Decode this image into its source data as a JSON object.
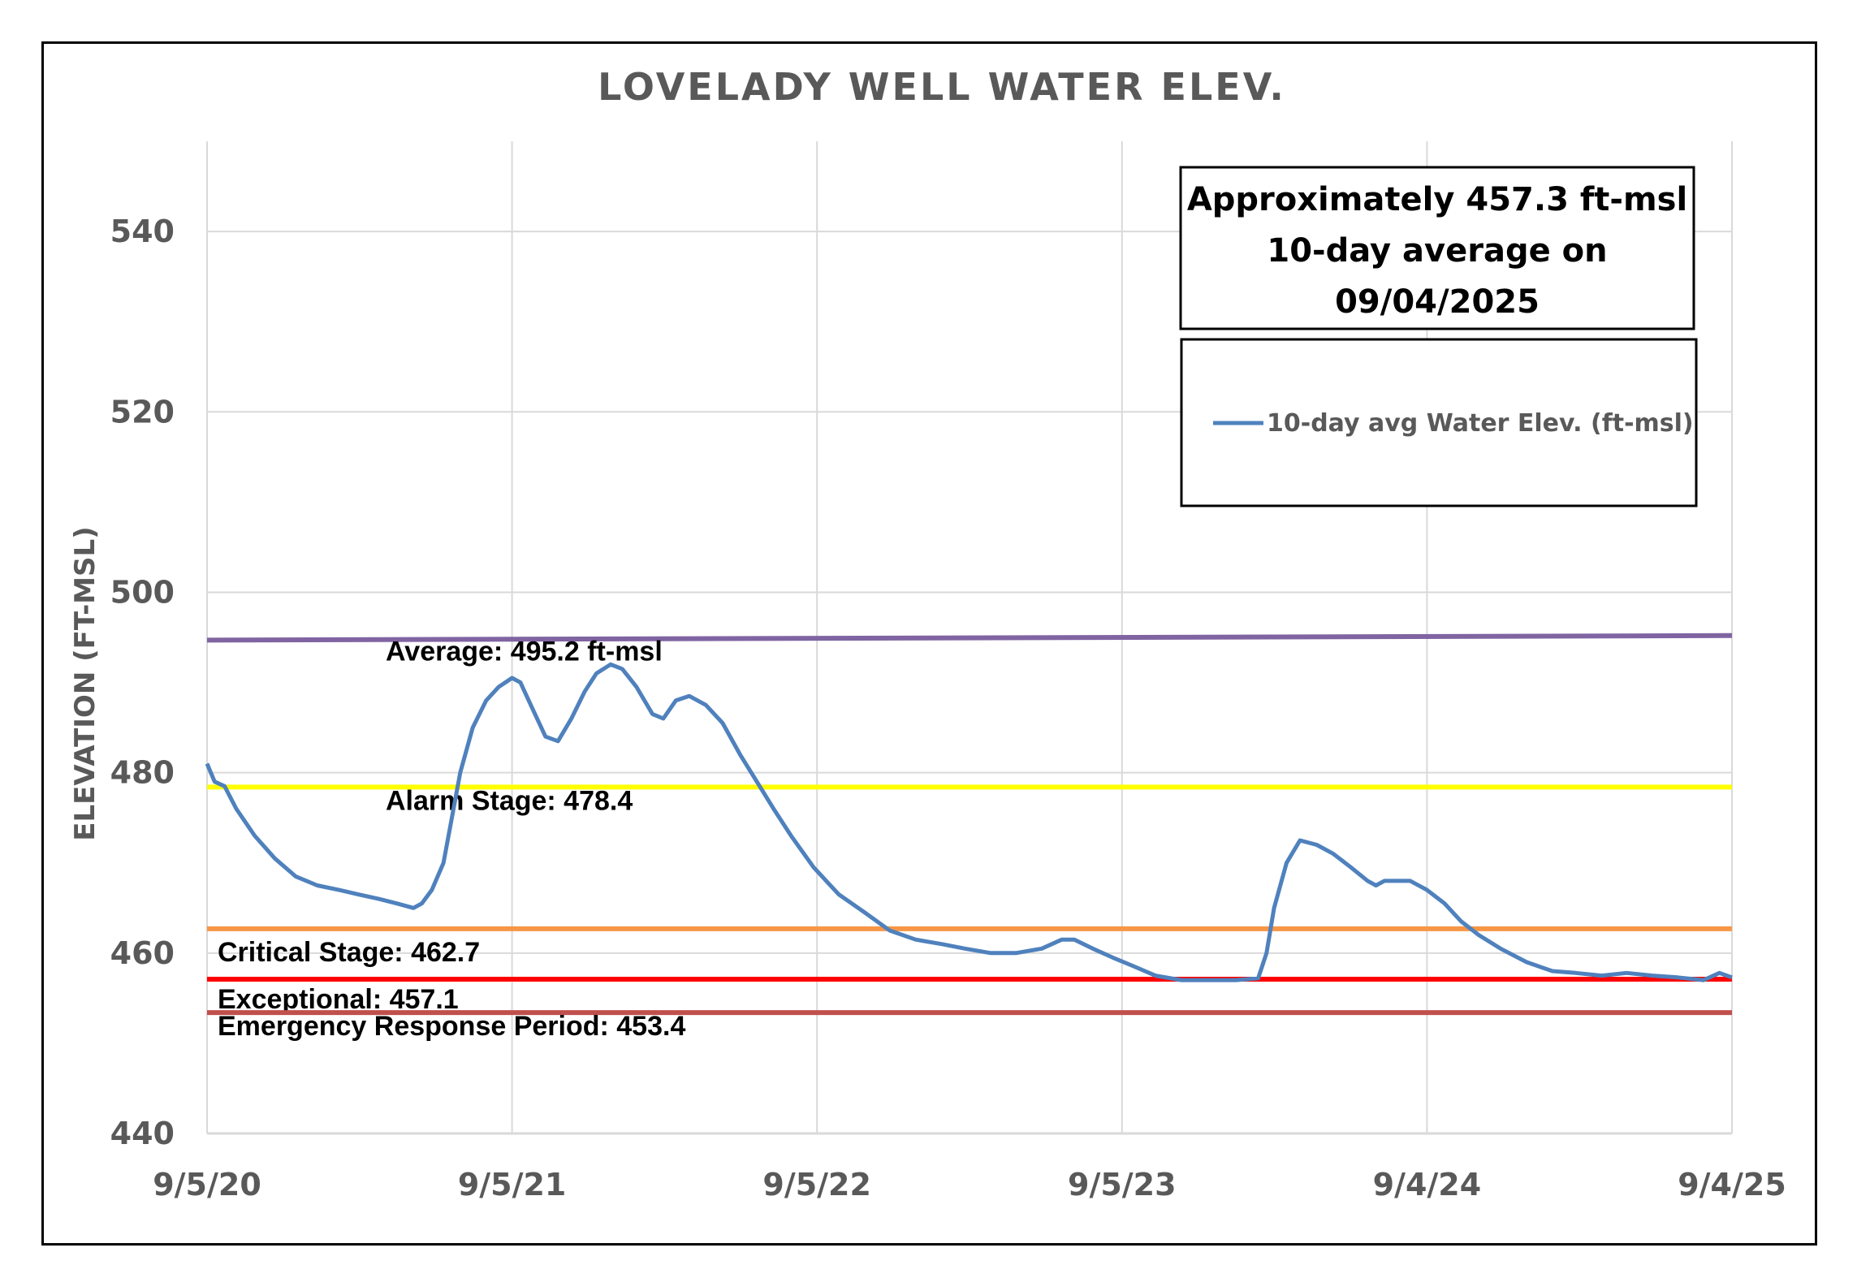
{
  "chart_data": {
    "type": "line",
    "title": "LOVELADY WELL WATER ELEV.",
    "ylabel": "ELEVATION (FT-MSL)",
    "xlabel": "",
    "ylim": [
      440,
      550
    ],
    "yticks": [
      440,
      460,
      480,
      500,
      520,
      540
    ],
    "xlim": [
      "2020-09-05",
      "2025-09-04"
    ],
    "xticks": [
      {
        "date": "2020-09-05",
        "label": "9/5/20"
      },
      {
        "date": "2021-09-05",
        "label": "9/5/21"
      },
      {
        "date": "2022-09-05",
        "label": "9/5/22"
      },
      {
        "date": "2023-09-05",
        "label": "9/5/23"
      },
      {
        "date": "2024-09-04",
        "label": "9/4/24"
      },
      {
        "date": "2025-09-04",
        "label": "9/4/25"
      }
    ],
    "grid": true,
    "legend_position": "top-right",
    "annotation": [
      "Approximately 457.3 ft-msl",
      "10-day average on",
      "09/04/2025"
    ],
    "series": [
      {
        "name": "10-day avg Water Elev. (ft-msl)",
        "color": "#4f81bd",
        "points": [
          [
            "2020-09-05",
            481.0
          ],
          [
            "2020-09-14",
            479.0
          ],
          [
            "2020-09-26",
            478.5
          ],
          [
            "2020-10-10",
            476.0
          ],
          [
            "2020-11-01",
            473.0
          ],
          [
            "2020-11-25",
            470.5
          ],
          [
            "2020-12-20",
            468.5
          ],
          [
            "2021-01-15",
            467.5
          ],
          [
            "2021-02-10",
            467.0
          ],
          [
            "2021-03-05",
            466.5
          ],
          [
            "2021-03-30",
            466.0
          ],
          [
            "2021-04-20",
            465.5
          ],
          [
            "2021-05-10",
            465.0
          ],
          [
            "2021-05-20",
            465.5
          ],
          [
            "2021-06-01",
            467.0
          ],
          [
            "2021-06-15",
            470.0
          ],
          [
            "2021-06-25",
            475.0
          ],
          [
            "2021-07-05",
            480.0
          ],
          [
            "2021-07-20",
            485.0
          ],
          [
            "2021-08-05",
            488.0
          ],
          [
            "2021-08-20",
            489.5
          ],
          [
            "2021-09-05",
            490.5
          ],
          [
            "2021-09-15",
            490.0
          ],
          [
            "2021-09-30",
            487.0
          ],
          [
            "2021-10-15",
            484.0
          ],
          [
            "2021-10-30",
            483.5
          ],
          [
            "2021-11-15",
            486.0
          ],
          [
            "2021-12-01",
            489.0
          ],
          [
            "2021-12-15",
            491.0
          ],
          [
            "2022-01-01",
            492.0
          ],
          [
            "2022-01-15",
            491.5
          ],
          [
            "2022-02-01",
            489.5
          ],
          [
            "2022-02-20",
            486.5
          ],
          [
            "2022-03-05",
            486.0
          ],
          [
            "2022-03-20",
            488.0
          ],
          [
            "2022-04-05",
            488.5
          ],
          [
            "2022-04-25",
            487.5
          ],
          [
            "2022-05-15",
            485.5
          ],
          [
            "2022-06-05",
            482.0
          ],
          [
            "2022-06-25",
            479.0
          ],
          [
            "2022-07-15",
            476.0
          ],
          [
            "2022-08-05",
            473.0
          ],
          [
            "2022-09-01",
            469.5
          ],
          [
            "2022-10-01",
            466.5
          ],
          [
            "2022-11-01",
            464.5
          ],
          [
            "2022-12-01",
            462.5
          ],
          [
            "2023-01-01",
            461.5
          ],
          [
            "2023-02-01",
            461.0
          ],
          [
            "2023-03-01",
            460.5
          ],
          [
            "2023-04-01",
            460.0
          ],
          [
            "2023-05-01",
            460.0
          ],
          [
            "2023-06-01",
            460.5
          ],
          [
            "2023-06-25",
            461.5
          ],
          [
            "2023-07-10",
            461.5
          ],
          [
            "2023-08-01",
            460.5
          ],
          [
            "2023-08-25",
            459.5
          ],
          [
            "2023-09-20",
            458.5
          ],
          [
            "2023-10-15",
            457.5
          ],
          [
            "2023-11-15",
            457.0
          ],
          [
            "2023-12-20",
            457.0
          ],
          [
            "2024-01-20",
            457.0
          ],
          [
            "2024-02-15",
            457.2
          ],
          [
            "2024-02-25",
            460.0
          ],
          [
            "2024-03-05",
            465.0
          ],
          [
            "2024-03-20",
            470.0
          ],
          [
            "2024-04-05",
            472.5
          ],
          [
            "2024-04-25",
            472.0
          ],
          [
            "2024-05-15",
            471.0
          ],
          [
            "2024-06-05",
            469.5
          ],
          [
            "2024-06-25",
            468.0
          ],
          [
            "2024-07-05",
            467.5
          ],
          [
            "2024-07-15",
            468.0
          ],
          [
            "2024-07-30",
            468.0
          ],
          [
            "2024-08-15",
            468.0
          ],
          [
            "2024-09-04",
            467.0
          ],
          [
            "2024-09-25",
            465.5
          ],
          [
            "2024-10-15",
            463.5
          ],
          [
            "2024-11-05",
            462.0
          ],
          [
            "2024-12-01",
            460.5
          ],
          [
            "2025-01-01",
            459.0
          ],
          [
            "2025-02-01",
            458.0
          ],
          [
            "2025-03-01",
            457.8
          ],
          [
            "2025-04-01",
            457.5
          ],
          [
            "2025-05-01",
            457.8
          ],
          [
            "2025-06-01",
            457.5
          ],
          [
            "2025-07-01",
            457.3
          ],
          [
            "2025-08-01",
            457.0
          ],
          [
            "2025-08-20",
            457.8
          ],
          [
            "2025-09-04",
            457.3
          ]
        ]
      }
    ],
    "reference_lines": [
      {
        "label": "Average: 495.2 ft-msl",
        "y_start": 494.7,
        "y_end": 495.2,
        "color": "#8064a2"
      },
      {
        "label": "Alarm Stage: 478.4",
        "y_start": 478.4,
        "y_end": 478.4,
        "color": "#ffff00"
      },
      {
        "label": "Critical Stage: 462.7",
        "y_start": 462.7,
        "y_end": 462.7,
        "color": "#f79646"
      },
      {
        "label": "Exceptional: 457.1",
        "y_start": 457.1,
        "y_end": 457.1,
        "color": "#ff0000"
      },
      {
        "label": "Emergency Response Period: 453.4",
        "y_start": 453.4,
        "y_end": 453.4,
        "color": "#c0504d"
      }
    ]
  }
}
